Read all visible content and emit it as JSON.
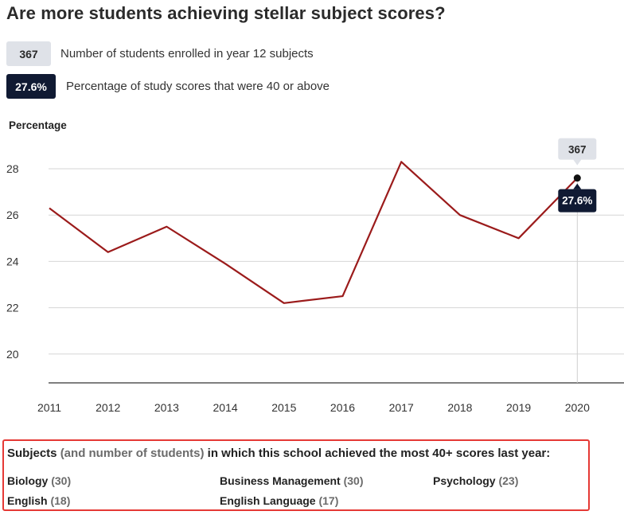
{
  "title": "Are more students achieving stellar subject scores?",
  "legend": [
    {
      "badge": "367",
      "text": "Number of students enrolled in year 12 subjects",
      "color": "#dfe2e8"
    },
    {
      "badge": "27.6%",
      "text": "Percentage of study scores that were 40 or above",
      "color": "#101a33"
    }
  ],
  "chart_data": {
    "type": "line",
    "title": "",
    "xlabel": "",
    "ylabel": "Percentage",
    "x": [
      "2011",
      "2012",
      "2013",
      "2014",
      "2015",
      "2016",
      "2017",
      "2018",
      "2019",
      "2020"
    ],
    "series": [
      {
        "values": [
          26.3,
          24.4,
          25.5,
          23.9,
          22.2,
          22.5,
          28.3,
          26.0,
          25.0,
          27.6
        ],
        "color": "#9b1b1b"
      }
    ],
    "ylim": [
      18.8,
      29
    ],
    "yticks": [
      "20",
      "22",
      "24",
      "26",
      "28"
    ],
    "grid": true,
    "highlight": {
      "x": "2020",
      "enrolled": "367",
      "percentage": "27.6%"
    }
  },
  "subjects": {
    "heading_start": "Subjects ",
    "heading_muted": "(and number of students)",
    "heading_end": " in which this school achieved the most 40+ scores last year:",
    "items": [
      {
        "name": "Biology",
        "count": "(30)"
      },
      {
        "name": "Business Management",
        "count": "(30)"
      },
      {
        "name": "Psychology",
        "count": "(23)"
      },
      {
        "name": "English",
        "count": "(18)"
      },
      {
        "name": "English Language",
        "count": "(17)"
      }
    ]
  }
}
